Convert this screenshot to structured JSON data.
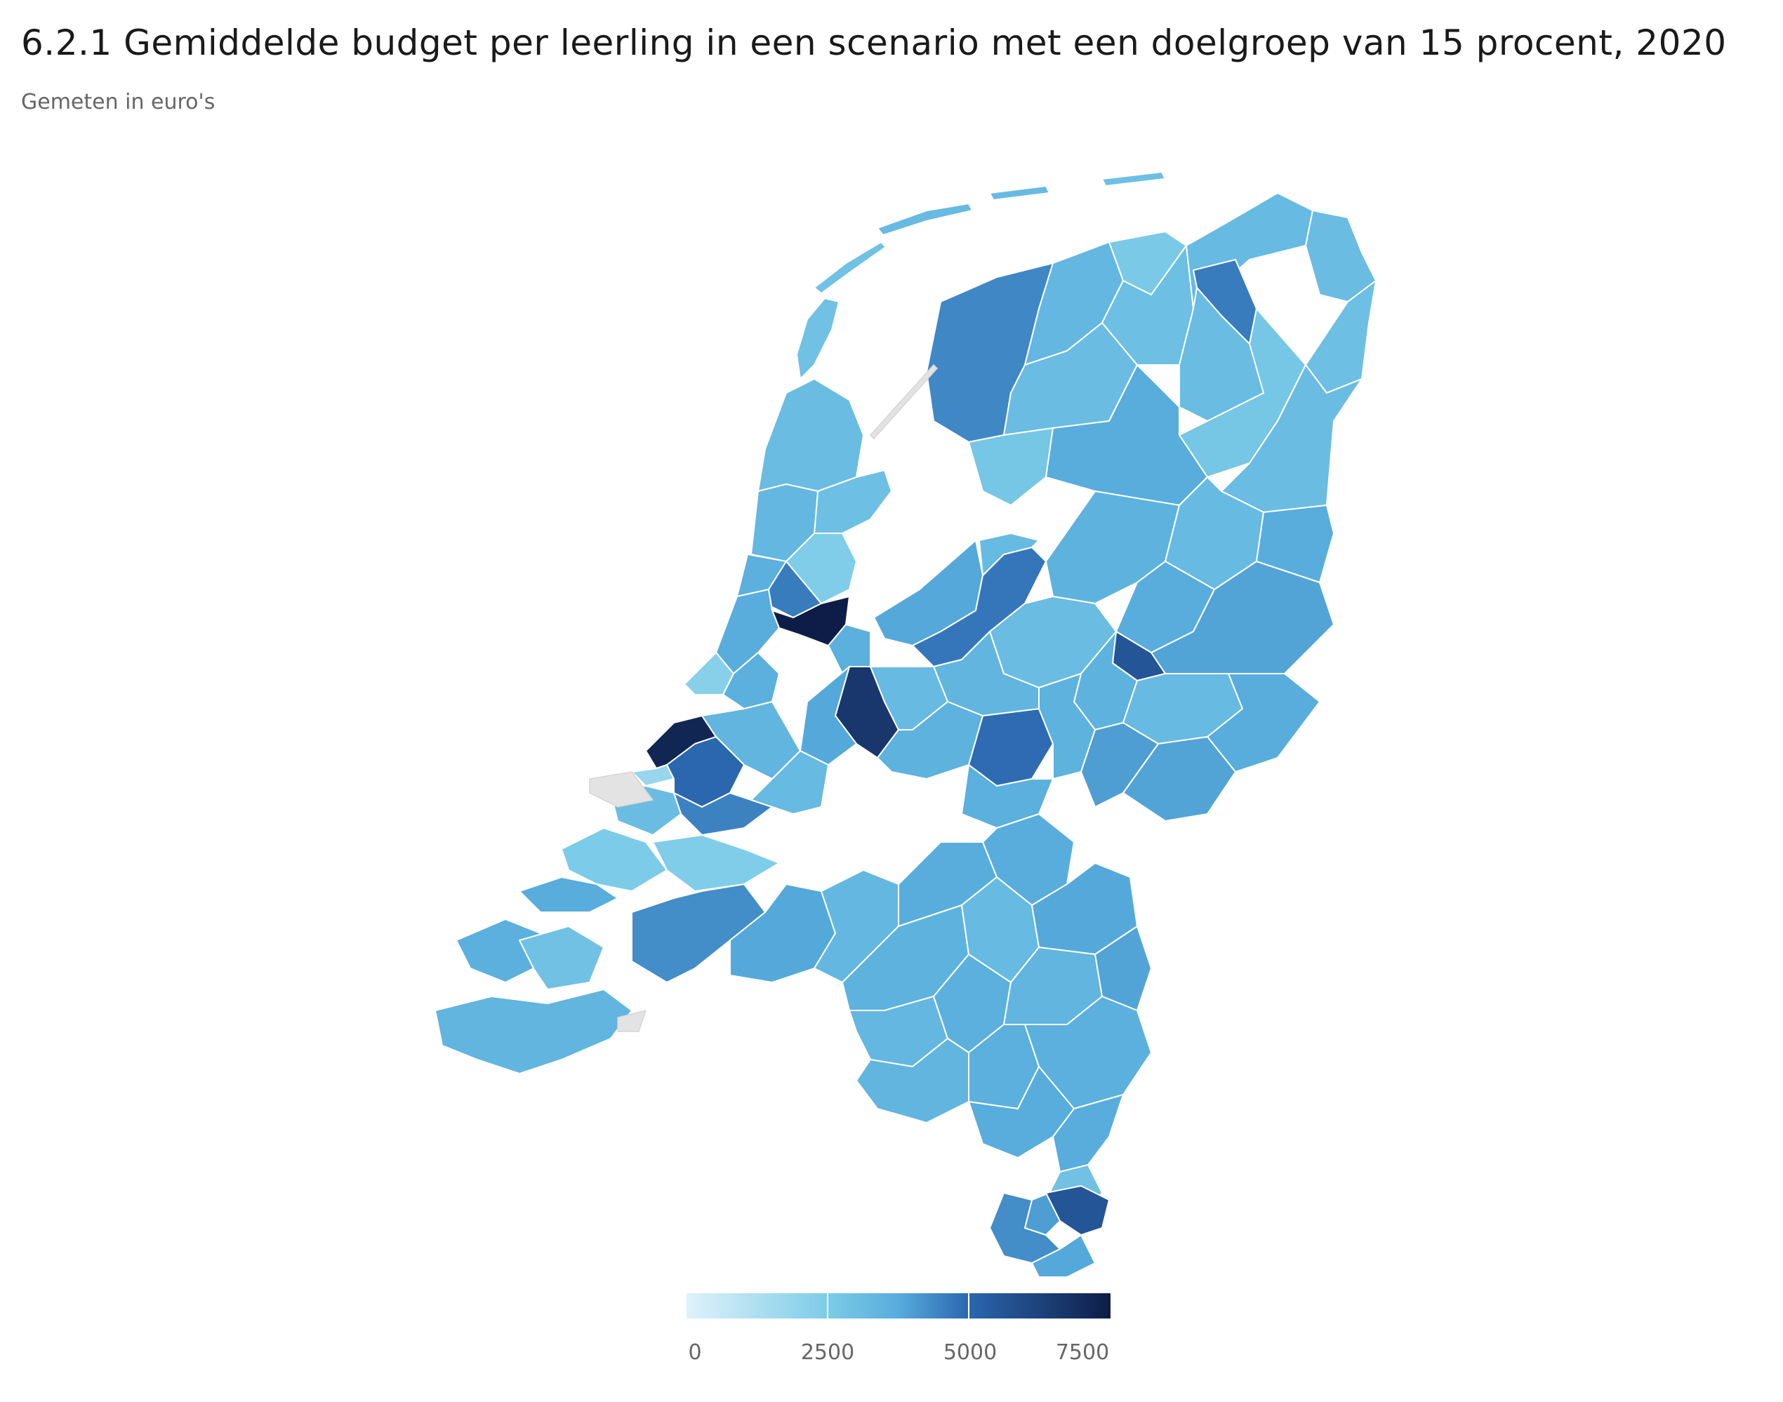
{
  "title": "6.2.1 Gemiddelde budget per leerling in een scenario met een doelgroep van 15 procent, 2020",
  "subtitle": "Gemeten in euro's",
  "color_scale": {
    "min": 0,
    "max": 7500,
    "colors": [
      "#dff2fb",
      "#7dcce8",
      "#57acdc",
      "#2c68b1",
      "#0e1d47"
    ],
    "ticks": [
      "0",
      "2500",
      "5000",
      "7500"
    ]
  },
  "map_type": "choropleth",
  "region_name": "Nederland",
  "regions": [
    {
      "id": "r01",
      "value": 2900
    },
    {
      "id": "r02",
      "value": 3200
    },
    {
      "id": "r03",
      "value": 3000
    },
    {
      "id": "r04",
      "value": 4400
    },
    {
      "id": "r05",
      "value": 3300
    },
    {
      "id": "r06",
      "value": 2600
    },
    {
      "id": "r07",
      "value": 3100
    },
    {
      "id": "r08",
      "value": 3000
    },
    {
      "id": "r09",
      "value": 2700
    },
    {
      "id": "r10",
      "value": 3200
    },
    {
      "id": "r11",
      "value": 3100
    },
    {
      "id": "r12",
      "value": 4600
    },
    {
      "id": "r13",
      "value": 3000
    },
    {
      "id": "r14",
      "value": 3100
    },
    {
      "id": "r15",
      "value": 7600
    },
    {
      "id": "r16",
      "value": 4500
    },
    {
      "id": "r17",
      "value": 3300
    },
    {
      "id": "r18",
      "value": 2700
    },
    {
      "id": "r19",
      "value": 3100
    },
    {
      "id": "r20",
      "value": 3700
    },
    {
      "id": "r21",
      "value": 3100
    },
    {
      "id": "r22",
      "value": 5000
    },
    {
      "id": "r23",
      "value": 3800
    },
    {
      "id": "r24",
      "value": 2400
    },
    {
      "id": "r25",
      "value": 3600
    },
    {
      "id": "r26",
      "value": 6600
    },
    {
      "id": "r27",
      "value": 3700
    },
    {
      "id": "r28",
      "value": 3200
    },
    {
      "id": "r29",
      "value": 3600
    },
    {
      "id": "r30",
      "value": 3200
    },
    {
      "id": "r31",
      "value": 4700
    },
    {
      "id": "r32",
      "value": 3700
    },
    {
      "id": "r33",
      "value": 3500
    },
    {
      "id": "r34",
      "value": 7200
    },
    {
      "id": "r35",
      "value": 2200
    },
    {
      "id": "r36",
      "value": 5600
    },
    {
      "id": "r37",
      "value": 3900
    },
    {
      "id": "r38",
      "value": 4900
    },
    {
      "id": "r39",
      "value": 3100
    },
    {
      "id": "r40",
      "value": 2500
    },
    {
      "id": "r41",
      "value": 1800
    },
    {
      "id": "r42",
      "value": 3200
    },
    {
      "id": "r43",
      "value": 3700
    },
    {
      "id": "r44",
      "value": 3400
    },
    {
      "id": "r45",
      "value": 3500
    },
    {
      "id": "r46",
      "value": 3300
    },
    {
      "id": "r47",
      "value": 2900
    },
    {
      "id": "r48",
      "value": 3600
    },
    {
      "id": "r49",
      "value": 3600
    },
    {
      "id": "r50",
      "value": 3200
    },
    {
      "id": "r51",
      "value": 3500
    },
    {
      "id": "r52",
      "value": 3800
    },
    {
      "id": "r53",
      "value": 3700
    },
    {
      "id": "r54",
      "value": 3600
    },
    {
      "id": "r55",
      "value": 3400
    },
    {
      "id": "r56",
      "value": 3200
    },
    {
      "id": "r57",
      "value": 3100
    },
    {
      "id": "r58",
      "value": 3700
    },
    {
      "id": "r59",
      "value": 3400
    },
    {
      "id": "r60",
      "value": 4000
    },
    {
      "id": "r61",
      "value": 4300
    },
    {
      "id": "r62",
      "value": 3800
    }
  ]
}
